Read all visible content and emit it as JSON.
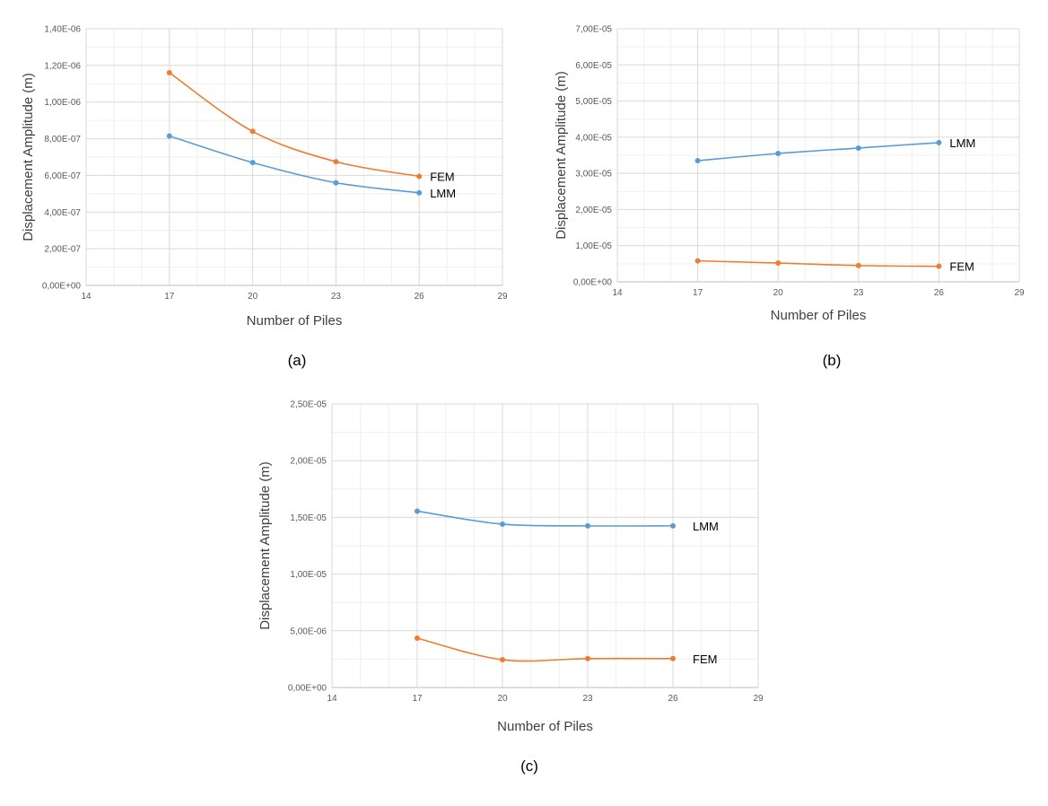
{
  "figure": {
    "captions": [
      "(a)",
      "(b)",
      "(c)"
    ]
  },
  "colors": {
    "LMM": "#5b9bd5",
    "FEM": "#ed7d31",
    "grid": "#d9d9d9",
    "text": "#404040"
  },
  "chart_data": [
    {
      "type": "line",
      "id": "a",
      "xlabel": "Number of Piles",
      "ylabel": "Displacement Amplitude (m)",
      "xlim": [
        14,
        29
      ],
      "xticks": [
        14,
        17,
        20,
        23,
        26,
        29
      ],
      "ylim": [
        0,
        1.4e-06
      ],
      "yticks": [
        0,
        2e-07,
        4e-07,
        6e-07,
        8e-07,
        1e-06,
        1.2e-06,
        1.4e-06
      ],
      "ytick_labels": [
        "0,00E+00",
        "2,00E-07",
        "4,00E-07",
        "6,00E-07",
        "8,00E-07",
        "1,00E-06",
        "1,20E-06",
        "1,40E-06"
      ],
      "grid": true,
      "x": [
        17,
        20,
        23,
        26
      ],
      "series": [
        {
          "name": "FEM",
          "color": "#ed7d31",
          "values": [
            1.16e-06,
            8.4e-07,
            6.75e-07,
            5.95e-07
          ]
        },
        {
          "name": "LMM",
          "color": "#5b9bd5",
          "values": [
            8.15e-07,
            6.7e-07,
            5.6e-07,
            5.05e-07
          ]
        }
      ]
    },
    {
      "type": "line",
      "id": "b",
      "xlabel": "Number of Piles",
      "ylabel": "Displacement Amplitude (m)",
      "xlim": [
        14,
        29
      ],
      "xticks": [
        14,
        17,
        20,
        23,
        26,
        29
      ],
      "ylim": [
        0,
        7e-05
      ],
      "yticks": [
        0,
        1e-05,
        2e-05,
        3e-05,
        4e-05,
        5e-05,
        6e-05,
        7e-05
      ],
      "ytick_labels": [
        "0,00E+00",
        "1,00E-05",
        "2,00E-05",
        "3,00E-05",
        "4,00E-05",
        "5,00E-05",
        "6,00E-05",
        "7,00E-05"
      ],
      "grid": true,
      "x": [
        17,
        20,
        23,
        26
      ],
      "series": [
        {
          "name": "LMM",
          "color": "#5b9bd5",
          "values": [
            3.35e-05,
            3.55e-05,
            3.7e-05,
            3.85e-05
          ]
        },
        {
          "name": "FEM",
          "color": "#ed7d31",
          "values": [
            5.8e-06,
            5.2e-06,
            4.5e-06,
            4.3e-06
          ]
        }
      ]
    },
    {
      "type": "line",
      "id": "c",
      "xlabel": "Number of Piles",
      "ylabel": "Displacement Amplitude (m)",
      "xlim": [
        14,
        29
      ],
      "xticks": [
        14,
        17,
        20,
        23,
        26,
        29
      ],
      "ylim": [
        0,
        2.5e-05
      ],
      "yticks": [
        0,
        5e-06,
        1e-05,
        1.5e-05,
        2e-05,
        2.5e-05
      ],
      "ytick_labels": [
        "0,00E+00",
        "5,00E-06",
        "1,00E-05",
        "1,50E-05",
        "2,00E-05",
        "2,50E-05"
      ],
      "grid": true,
      "x": [
        17,
        20,
        23,
        26
      ],
      "series": [
        {
          "name": "LMM",
          "color": "#5b9bd5",
          "values": [
            1.555e-05,
            1.44e-05,
            1.425e-05,
            1.425e-05
          ]
        },
        {
          "name": "FEM",
          "color": "#ed7d31",
          "values": [
            4.35e-06,
            2.45e-06,
            2.55e-06,
            2.55e-06
          ]
        }
      ]
    }
  ]
}
